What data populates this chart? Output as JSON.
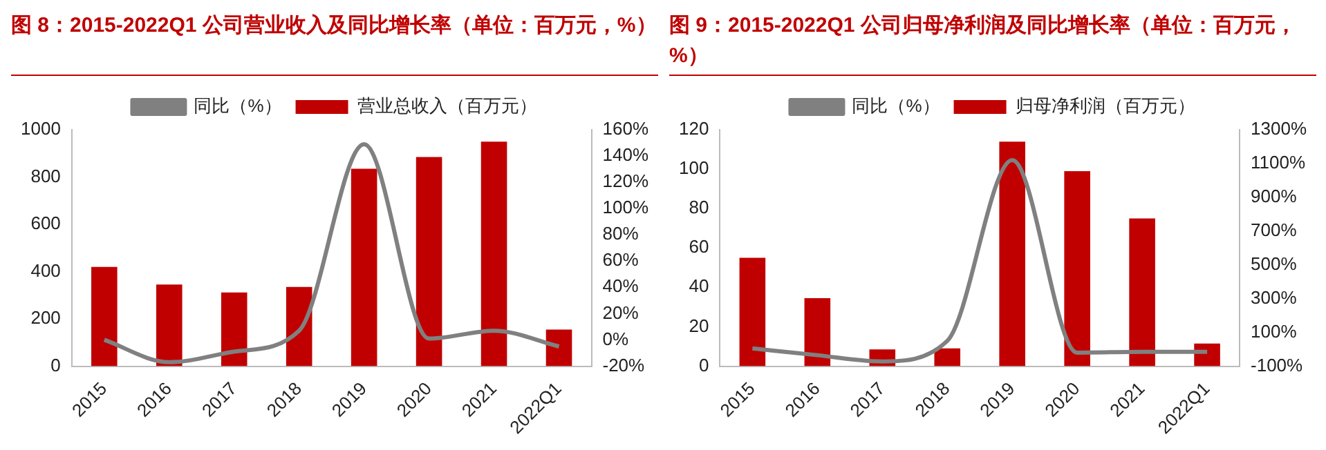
{
  "chart_data": [
    {
      "type": "bar",
      "title": "图 8：2015-2022Q1 公司营业收入及同比增长率（单位：百万元，%）",
      "categories": [
        "2015",
        "2016",
        "2017",
        "2018",
        "2019",
        "2020",
        "2021",
        "2022Q1"
      ],
      "series": [
        {
          "name": "营业总收入（百万元）",
          "color": "#c00000",
          "values": [
            420,
            345,
            312,
            335,
            835,
            885,
            950,
            155
          ]
        },
        {
          "name": "同比（%）",
          "type": "line",
          "axis": "y2",
          "color": "#808080",
          "values": [
            0,
            -17,
            -9,
            7,
            149,
            1,
            7,
            -5
          ]
        }
      ],
      "ylim": [
        0,
        1000
      ],
      "yticks": [
        0,
        200,
        400,
        600,
        800,
        1000
      ],
      "y2lim": [
        -20,
        160
      ],
      "y2ticks": [
        {
          "value": -20,
          "label": "-20%"
        },
        {
          "value": 0,
          "label": "0%"
        },
        {
          "value": 20,
          "label": "20%"
        },
        {
          "value": 40,
          "label": "40%"
        },
        {
          "value": 60,
          "label": "60%"
        },
        {
          "value": 80,
          "label": "80%"
        },
        {
          "value": 100,
          "label": "100%"
        },
        {
          "value": 120,
          "label": "120%"
        },
        {
          "value": 140,
          "label": "140%"
        },
        {
          "value": 160,
          "label": "160%"
        }
      ],
      "legend": "top",
      "marker": "none",
      "grid": false
    },
    {
      "type": "bar",
      "title": "图 9：2015-2022Q1 公司归母净利润及同比增长率（单位：百万元，%）",
      "categories": [
        "2015",
        "2016",
        "2017",
        "2018",
        "2019",
        "2020",
        "2021",
        "2022Q1"
      ],
      "series": [
        {
          "name": "归母净利润（百万元）",
          "color": "#c00000",
          "values": [
            55,
            34.5,
            8.5,
            9,
            114,
            99,
            75,
            11.5
          ]
        },
        {
          "name": "同比（%）",
          "type": "line",
          "axis": "y2",
          "color": "#808080",
          "values": [
            5,
            -35,
            -72,
            50,
            1120,
            -20,
            -15,
            -15
          ]
        }
      ],
      "ylim": [
        0,
        120
      ],
      "yticks": [
        0,
        20,
        40,
        60,
        80,
        100,
        120
      ],
      "y2lim": [
        -100,
        1300
      ],
      "y2ticks": [
        {
          "value": -100,
          "label": "-100%"
        },
        {
          "value": 100,
          "label": "100%"
        },
        {
          "value": 300,
          "label": "300%"
        },
        {
          "value": 500,
          "label": "500%"
        },
        {
          "value": 700,
          "label": "700%"
        },
        {
          "value": 900,
          "label": "900%"
        },
        {
          "value": 1100,
          "label": "1100%"
        },
        {
          "value": 1300,
          "label": "1300%"
        }
      ],
      "legend": "top",
      "marker": "none",
      "grid": false
    }
  ]
}
